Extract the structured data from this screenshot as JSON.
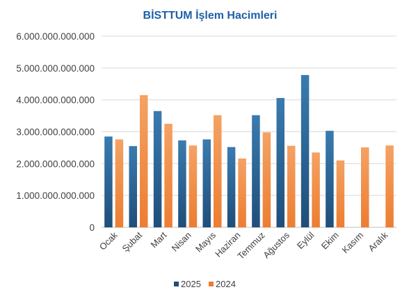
{
  "chart_data": {
    "type": "bar",
    "title": "BİSTTUM İşlem Hacimleri",
    "xlabel": "",
    "ylabel": "",
    "ylim": [
      0,
      6000000000000
    ],
    "yticks": [
      0,
      1000000000000,
      2000000000000,
      3000000000000,
      4000000000000,
      5000000000000,
      6000000000000
    ],
    "ytick_labels": [
      "0",
      "1.000.000.000.000",
      "2.000.000.000.000",
      "3.000.000.000.000",
      "4.000.000.000.000",
      "5.000.000.000.000",
      "6.000.000.000.000"
    ],
    "categories": [
      "Ocak",
      "Şubat",
      "Mart",
      "Nisan",
      "Mayıs",
      "Haziran",
      "Temmuz",
      "Ağustos",
      "Eylül",
      "Ekim",
      "Kasım",
      "Aralık"
    ],
    "series": [
      {
        "name": "2025",
        "color": "#1f4e79",
        "values": [
          2850000000000,
          2550000000000,
          3650000000000,
          2730000000000,
          2760000000000,
          2520000000000,
          3520000000000,
          4060000000000,
          4780000000000,
          3030000000000,
          null,
          null
        ]
      },
      {
        "name": "2024",
        "color": "#ed7d31",
        "values": [
          2760000000000,
          4150000000000,
          3250000000000,
          2570000000000,
          3520000000000,
          2160000000000,
          2980000000000,
          2560000000000,
          2350000000000,
          2100000000000,
          2510000000000,
          2570000000000
        ]
      }
    ],
    "grid": true,
    "legend_position": "bottom"
  }
}
